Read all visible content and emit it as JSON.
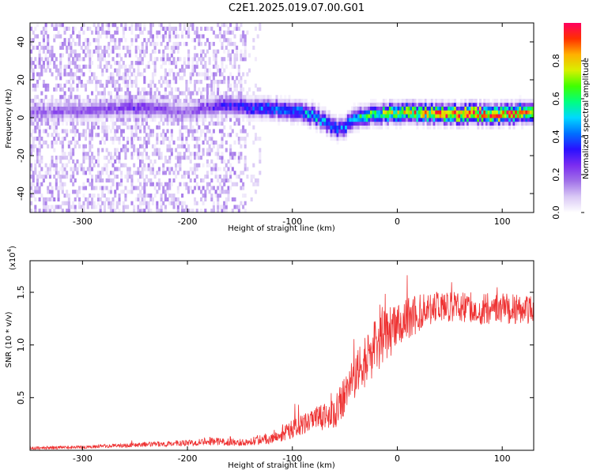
{
  "figure_title": "C2E1.2025.019.07.00.G01",
  "colors": {
    "snr_line": "#ee3333",
    "axis": "#000000",
    "colormap": [
      "#ffffff",
      "#d9c8f5",
      "#a070e8",
      "#7a2cf0",
      "#2a10ff",
      "#0070ff",
      "#00d8ff",
      "#00ff80",
      "#40ff00",
      "#d8f000",
      "#ffb000",
      "#ff3000",
      "#ff0060"
    ]
  },
  "chart_data": [
    {
      "type": "heatmap",
      "xlabel": "Height of straight line (km)",
      "ylabel": "Frequency (Hz)",
      "xlim": [
        -350,
        130
      ],
      "ylim": [
        -50,
        50
      ],
      "xticks": [
        -300,
        -200,
        -100,
        0,
        100
      ],
      "yticks": [
        -40,
        -20,
        0,
        20,
        40
      ],
      "grid": false,
      "colorbar": {
        "label": "Normalized spectral amplitude",
        "range": [
          0.0,
          1.0
        ],
        "ticks": [
          "0.0",
          "0.2",
          "0.4",
          "0.6",
          "0.8"
        ]
      },
      "ridge": {
        "x": [
          -350,
          -300,
          -250,
          -200,
          -170,
          -150,
          -120,
          -100,
          -80,
          -60,
          -55,
          -40,
          -20,
          0,
          50,
          100,
          130
        ],
        "frequency": [
          2,
          3,
          5,
          2,
          5,
          5,
          4,
          3,
          0,
          -6,
          -7,
          -1,
          1,
          2,
          1,
          1,
          2
        ],
        "amplitude": [
          0.18,
          0.2,
          0.25,
          0.18,
          0.3,
          0.35,
          0.42,
          0.45,
          0.5,
          0.42,
          0.4,
          0.55,
          0.65,
          0.75,
          0.9,
          0.92,
          0.85
        ]
      },
      "noise_band_end_x": -145
    },
    {
      "type": "line",
      "xlabel": "Height of straight line (km)",
      "ylabel": "SNR (10 * v/v)",
      "y_multiplier": "(x10^4)",
      "xlim": [
        -350,
        130
      ],
      "ylim": [
        0,
        18000
      ],
      "xticks": [
        -300,
        -200,
        -100,
        0,
        100
      ],
      "yticks": [
        5000,
        10000,
        15000
      ],
      "ytick_labels": [
        "0.5",
        "1.0",
        "1.5"
      ],
      "grid": false,
      "series": [
        {
          "x": [
            -350,
            -300,
            -250,
            -200,
            -180,
            -150,
            -120,
            -100,
            -80,
            -60,
            -50,
            -40,
            -30,
            -20,
            -10,
            0,
            10,
            20,
            30,
            40,
            60,
            80,
            100,
            130
          ],
          "y": [
            200,
            300,
            500,
            700,
            900,
            700,
            1200,
            2000,
            2800,
            3500,
            5000,
            7000,
            8500,
            10000,
            11000,
            12000,
            12500,
            13000,
            13500,
            13700,
            13600,
            13400,
            13500,
            13300
          ],
          "noise_amplitude": [
            150,
            150,
            200,
            300,
            400,
            300,
            600,
            900,
            1200,
            1500,
            2000,
            2200,
            2400,
            2600,
            2500,
            2400,
            2200,
            1800,
            1600,
            1500,
            1500,
            1500,
            1500,
            1500
          ]
        }
      ]
    }
  ]
}
